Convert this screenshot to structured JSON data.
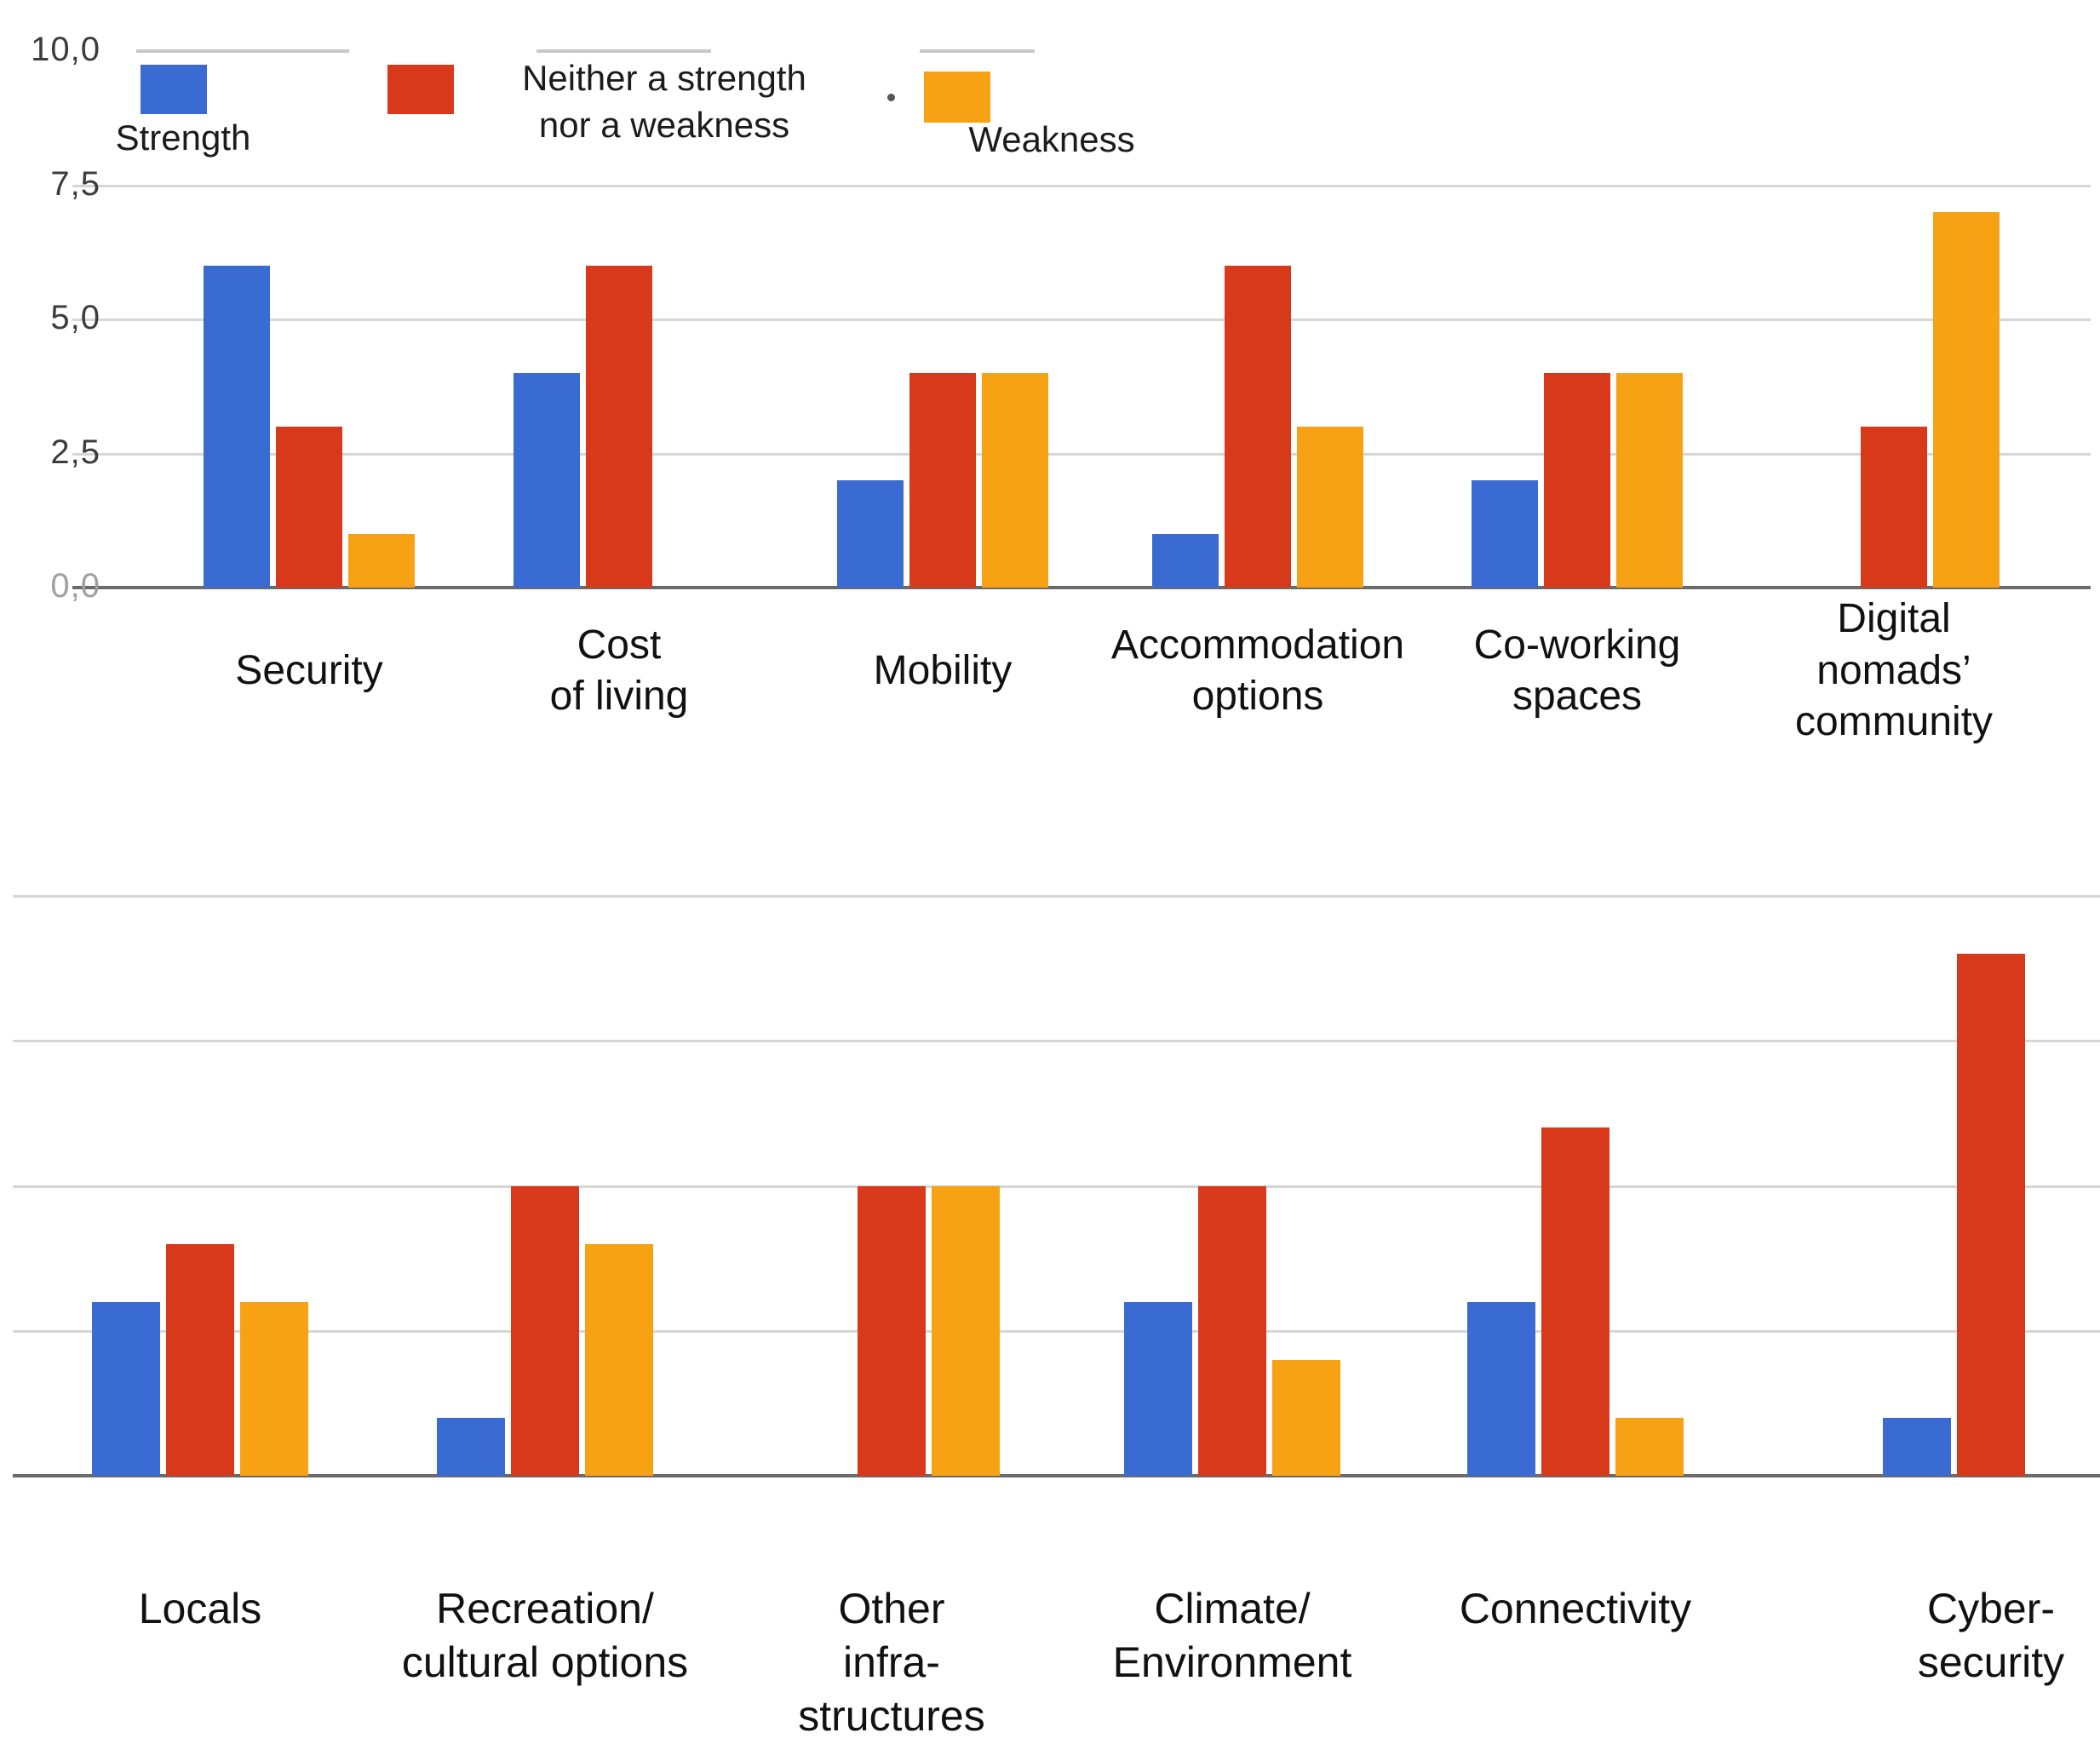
{
  "figure": {
    "background": "#ffffff",
    "description_labels": {
      "legend_strength": "Strength",
      "legend_neither": "Neither a strength\nnor a weakness",
      "legend_weakness": "Weakness"
    }
  },
  "legend": {
    "items": [
      {
        "label": "Strength",
        "color": "#3A6BD3"
      },
      {
        "label": "Neither a strength\nnor a weakness",
        "color": "#D8391B"
      },
      {
        "label": "Weakness",
        "color": "#F7A114"
      }
    ]
  },
  "chart_data": [
    {
      "type": "bar",
      "title": "",
      "categories": [
        "Security",
        "Cost\nof living",
        "Mobility",
        "Accommodation\noptions",
        "Co-working\nspaces",
        "Digital\nnomads’\ncommunity"
      ],
      "series": [
        {
          "name": "Strength",
          "color": "#3A6BD3",
          "values": [
            6,
            4,
            2,
            1,
            2,
            0
          ]
        },
        {
          "name": "Neither a strength nor a weakness",
          "color": "#D8391B",
          "values": [
            3,
            6,
            4,
            6,
            4,
            3
          ]
        },
        {
          "name": "Weakness",
          "color": "#F7A114",
          "values": [
            1,
            0,
            4,
            3,
            4,
            7
          ]
        }
      ],
      "xlabel": "",
      "ylabel": "",
      "ylim": [
        0,
        10
      ],
      "yticks": [
        "10,0",
        "7,5",
        "5,0",
        "2,5",
        "0,0"
      ],
      "grid": true,
      "legend_position": "top"
    },
    {
      "type": "bar",
      "title": "",
      "categories": [
        "Locals",
        "Recreation/\ncultural options",
        "Other\ninfra-\nstructures",
        "Climate/\nEnvironment",
        "Connectivity",
        "Cyber-\nsecurity"
      ],
      "series": [
        {
          "name": "Strength",
          "color": "#3A6BD3",
          "values": [
            3,
            1,
            0,
            3,
            3,
            1
          ]
        },
        {
          "name": "Neither a strength nor a weakness",
          "color": "#D8391B",
          "values": [
            4,
            5,
            5,
            5,
            6,
            9
          ]
        },
        {
          "name": "Weakness",
          "color": "#F7A114",
          "values": [
            3,
            4,
            5,
            2,
            1,
            0
          ]
        }
      ],
      "xlabel": "",
      "ylabel": "",
      "ylim": [
        0,
        10
      ],
      "yticks": [],
      "grid": true,
      "legend_position": "none"
    }
  ]
}
